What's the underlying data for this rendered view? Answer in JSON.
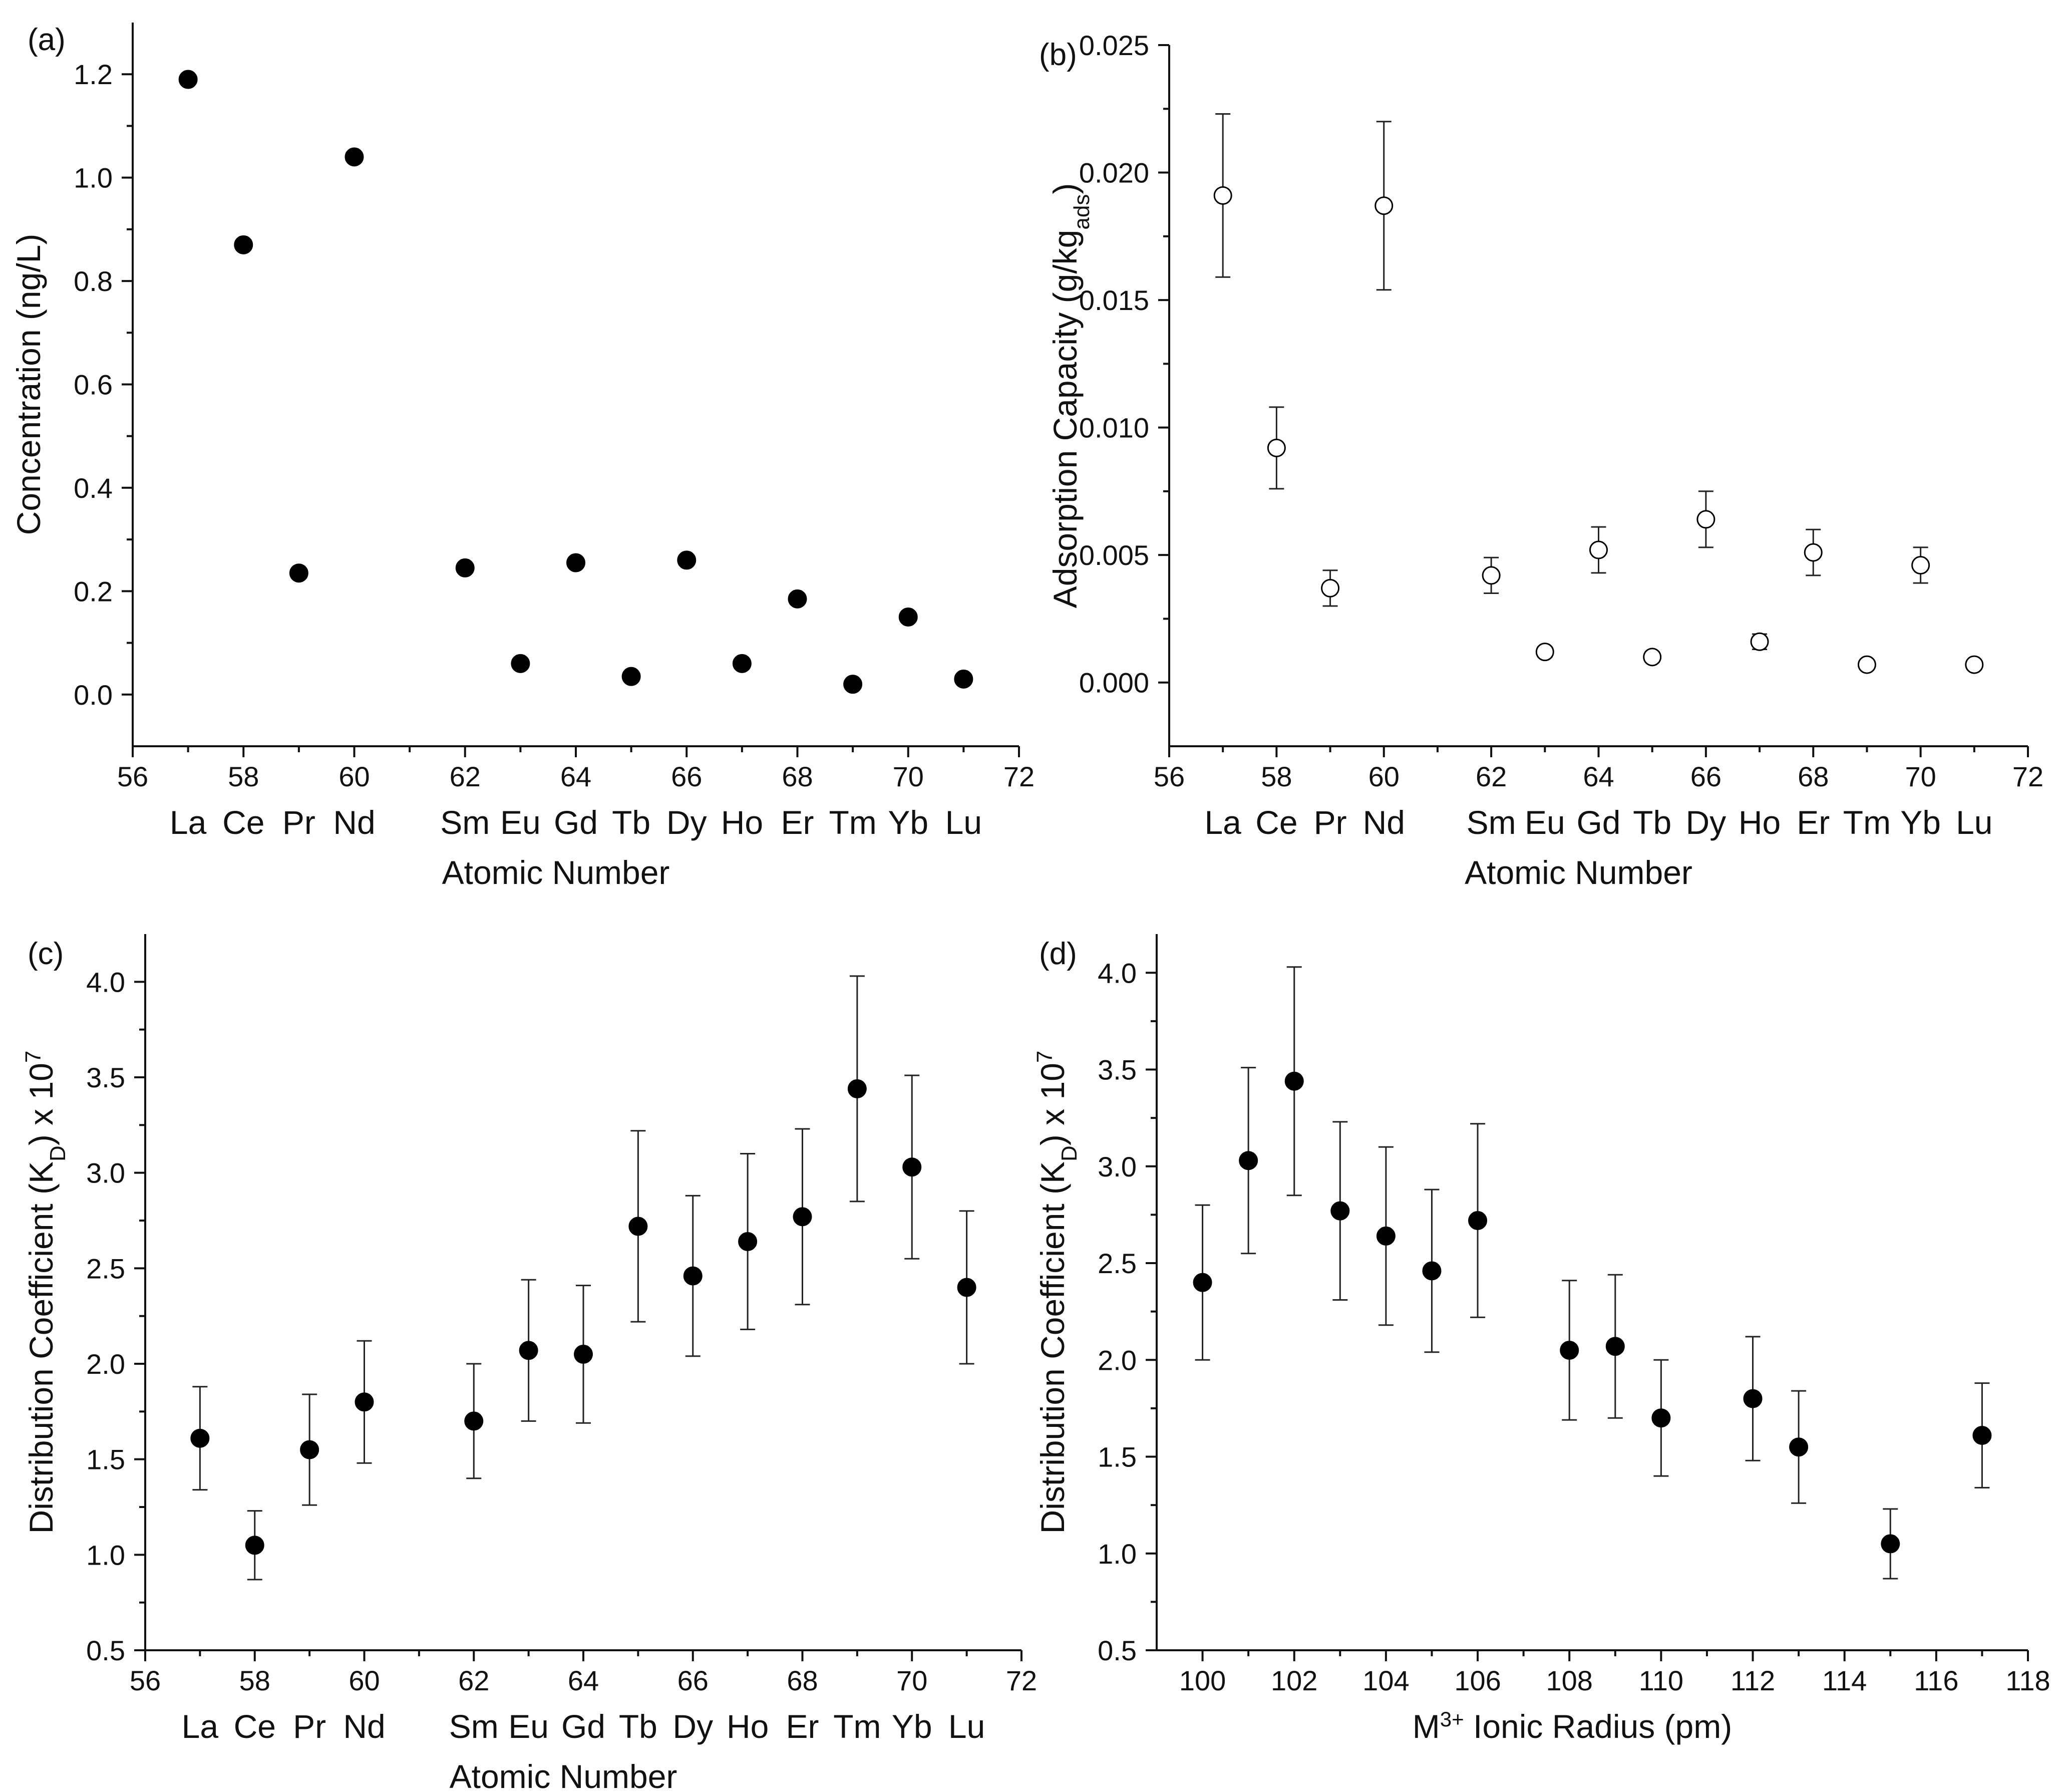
{
  "colors": {
    "marker": "#000000",
    "axis": "#111111",
    "hollow_fill": "#ffffff"
  },
  "chart_data": [
    {
      "id": "a",
      "type": "scatter",
      "panel_label": "(a)",
      "xlabel": "Atomic Number",
      "ylabel": "Concentration (ng/L)",
      "ylabel_parts": [
        "Concentration (ng/L)"
      ],
      "xlim": [
        56,
        72
      ],
      "ylim": [
        -0.1,
        1.3
      ],
      "xticks": [
        56,
        58,
        60,
        62,
        64,
        66,
        68,
        70,
        72
      ],
      "yticks": [
        0.0,
        0.2,
        0.4,
        0.6,
        0.8,
        1.0,
        1.2
      ],
      "ytick_decimals": 1,
      "marker": "filled",
      "element_labels": [
        {
          "x": 57,
          "label": "La"
        },
        {
          "x": 58,
          "label": "Ce"
        },
        {
          "x": 59,
          "label": "Pr"
        },
        {
          "x": 60,
          "label": "Nd"
        },
        {
          "x": 62,
          "label": "Sm"
        },
        {
          "x": 63,
          "label": "Eu"
        },
        {
          "x": 64,
          "label": "Gd"
        },
        {
          "x": 65,
          "label": "Tb"
        },
        {
          "x": 66,
          "label": "Dy"
        },
        {
          "x": 67,
          "label": "Ho"
        },
        {
          "x": 68,
          "label": "Er"
        },
        {
          "x": 69,
          "label": "Tm"
        },
        {
          "x": 70,
          "label": "Yb"
        },
        {
          "x": 71,
          "label": "Lu"
        }
      ],
      "points": [
        {
          "x": 57,
          "y": 1.19
        },
        {
          "x": 58,
          "y": 0.87
        },
        {
          "x": 59,
          "y": 0.235
        },
        {
          "x": 60,
          "y": 1.04
        },
        {
          "x": 62,
          "y": 0.245
        },
        {
          "x": 63,
          "y": 0.06
        },
        {
          "x": 64,
          "y": 0.255
        },
        {
          "x": 65,
          "y": 0.035
        },
        {
          "x": 66,
          "y": 0.26
        },
        {
          "x": 67,
          "y": 0.06
        },
        {
          "x": 68,
          "y": 0.185
        },
        {
          "x": 69,
          "y": 0.02
        },
        {
          "x": 70,
          "y": 0.15
        },
        {
          "x": 71,
          "y": 0.03
        }
      ]
    },
    {
      "id": "b",
      "type": "scatter",
      "panel_label": "(b)",
      "xlabel": "Atomic Number",
      "ylabel": "Adsorption Capacity (g/kgads)",
      "ylabel_parts": [
        "Adsorption Capacity (g/kg",
        "ads",
        ")"
      ],
      "xlim": [
        56,
        72
      ],
      "ylim": [
        -0.0025,
        0.025
      ],
      "xticks": [
        56,
        58,
        60,
        62,
        64,
        66,
        68,
        70,
        72
      ],
      "yticks": [
        0.0,
        0.005,
        0.01,
        0.015,
        0.02,
        0.025
      ],
      "ytick_decimals": 3,
      "marker": "hollow",
      "element_labels": [
        {
          "x": 57,
          "label": "La"
        },
        {
          "x": 58,
          "label": "Ce"
        },
        {
          "x": 59,
          "label": "Pr"
        },
        {
          "x": 60,
          "label": "Nd"
        },
        {
          "x": 62,
          "label": "Sm"
        },
        {
          "x": 63,
          "label": "Eu"
        },
        {
          "x": 64,
          "label": "Gd"
        },
        {
          "x": 65,
          "label": "Tb"
        },
        {
          "x": 66,
          "label": "Dy"
        },
        {
          "x": 67,
          "label": "Ho"
        },
        {
          "x": 68,
          "label": "Er"
        },
        {
          "x": 69,
          "label": "Tm"
        },
        {
          "x": 70,
          "label": "Yb"
        },
        {
          "x": 71,
          "label": "Lu"
        }
      ],
      "points": [
        {
          "x": 57,
          "y": 0.0191,
          "err": 0.0032
        },
        {
          "x": 58,
          "y": 0.0092,
          "err": 0.0016
        },
        {
          "x": 59,
          "y": 0.0037,
          "err": 0.0007
        },
        {
          "x": 60,
          "y": 0.0187,
          "err": 0.0033
        },
        {
          "x": 62,
          "y": 0.0042,
          "err": 0.0007
        },
        {
          "x": 63,
          "y": 0.0012,
          "err": 0.0002
        },
        {
          "x": 64,
          "y": 0.0052,
          "err": 0.0009
        },
        {
          "x": 65,
          "y": 0.001,
          "err": 0.0002
        },
        {
          "x": 66,
          "y": 0.0064,
          "err": 0.0011
        },
        {
          "x": 67,
          "y": 0.0016,
          "err": 0.0003
        },
        {
          "x": 68,
          "y": 0.0051,
          "err": 0.0009
        },
        {
          "x": 69,
          "y": 0.0007,
          "err": 0.0001
        },
        {
          "x": 70,
          "y": 0.0046,
          "err": 0.0007
        },
        {
          "x": 71,
          "y": 0.0007,
          "err": 0.0001
        }
      ]
    },
    {
      "id": "c",
      "type": "scatter",
      "panel_label": "(c)",
      "xlabel": "Atomic Number",
      "ylabel": "Distribution Coefficient (KD) x 10^7",
      "ylabel_parts": [
        "Distribution Coefficient (K",
        "D",
        ") x 10",
        "7"
      ],
      "xlim": [
        56,
        72
      ],
      "ylim": [
        0.5,
        4.25
      ],
      "xticks": [
        56,
        58,
        60,
        62,
        64,
        66,
        68,
        70,
        72
      ],
      "yticks": [
        0.5,
        1.0,
        1.5,
        2.0,
        2.5,
        3.0,
        3.5,
        4.0
      ],
      "ytick_decimals": 1,
      "marker": "filled",
      "element_labels": [
        {
          "x": 57,
          "label": "La"
        },
        {
          "x": 58,
          "label": "Ce"
        },
        {
          "x": 59,
          "label": "Pr"
        },
        {
          "x": 60,
          "label": "Nd"
        },
        {
          "x": 62,
          "label": "Sm"
        },
        {
          "x": 63,
          "label": "Eu"
        },
        {
          "x": 64,
          "label": "Gd"
        },
        {
          "x": 65,
          "label": "Tb"
        },
        {
          "x": 66,
          "label": "Dy"
        },
        {
          "x": 67,
          "label": "Ho"
        },
        {
          "x": 68,
          "label": "Er"
        },
        {
          "x": 69,
          "label": "Tm"
        },
        {
          "x": 70,
          "label": "Yb"
        },
        {
          "x": 71,
          "label": "Lu"
        }
      ],
      "points": [
        {
          "x": 57,
          "y": 1.61,
          "err": 0.27
        },
        {
          "x": 58,
          "y": 1.05,
          "err": 0.18
        },
        {
          "x": 59,
          "y": 1.55,
          "err": 0.29
        },
        {
          "x": 60,
          "y": 1.8,
          "err": 0.32
        },
        {
          "x": 62,
          "y": 1.7,
          "err": 0.3
        },
        {
          "x": 63,
          "y": 2.07,
          "err": 0.37
        },
        {
          "x": 64,
          "y": 2.05,
          "err": 0.36
        },
        {
          "x": 65,
          "y": 2.72,
          "err": 0.5
        },
        {
          "x": 66,
          "y": 2.46,
          "err": 0.42
        },
        {
          "x": 67,
          "y": 2.64,
          "err": 0.46
        },
        {
          "x": 68,
          "y": 2.77,
          "err": 0.46
        },
        {
          "x": 69,
          "y": 3.44,
          "err": 0.59
        },
        {
          "x": 70,
          "y": 3.03,
          "err": 0.48
        },
        {
          "x": 71,
          "y": 2.4,
          "err": 0.4
        }
      ]
    },
    {
      "id": "d",
      "type": "scatter",
      "panel_label": "(d)",
      "xlabel": "M3+ Ionic Radius (pm)",
      "xlabel_parts": [
        "M",
        "3+",
        " Ionic Radius (pm)"
      ],
      "ylabel": "Distribution Coefficient (KD) x 10^7",
      "ylabel_parts": [
        "Distribution Coefficient (K",
        "D",
        ") x 10",
        "7"
      ],
      "xlim": [
        99,
        118
      ],
      "ylim": [
        0.5,
        4.2
      ],
      "xticks": [
        100,
        102,
        104,
        106,
        108,
        110,
        112,
        114,
        116,
        118
      ],
      "yticks": [
        0.5,
        1.0,
        1.5,
        2.0,
        2.5,
        3.0,
        3.5,
        4.0
      ],
      "ytick_decimals": 1,
      "marker": "filled",
      "element_labels": [],
      "points": [
        {
          "x": 100,
          "y": 2.4,
          "err": 0.4
        },
        {
          "x": 101,
          "y": 3.03,
          "err": 0.48
        },
        {
          "x": 102,
          "y": 3.44,
          "err": 0.59
        },
        {
          "x": 103,
          "y": 2.77,
          "err": 0.46
        },
        {
          "x": 104,
          "y": 2.64,
          "err": 0.46
        },
        {
          "x": 105,
          "y": 2.46,
          "err": 0.42
        },
        {
          "x": 106,
          "y": 2.72,
          "err": 0.5
        },
        {
          "x": 108,
          "y": 2.05,
          "err": 0.36
        },
        {
          "x": 109,
          "y": 2.07,
          "err": 0.37
        },
        {
          "x": 110,
          "y": 1.7,
          "err": 0.3
        },
        {
          "x": 112,
          "y": 1.8,
          "err": 0.32
        },
        {
          "x": 113,
          "y": 1.55,
          "err": 0.29
        },
        {
          "x": 115,
          "y": 1.05,
          "err": 0.18
        },
        {
          "x": 117,
          "y": 1.61,
          "err": 0.27
        }
      ]
    }
  ]
}
